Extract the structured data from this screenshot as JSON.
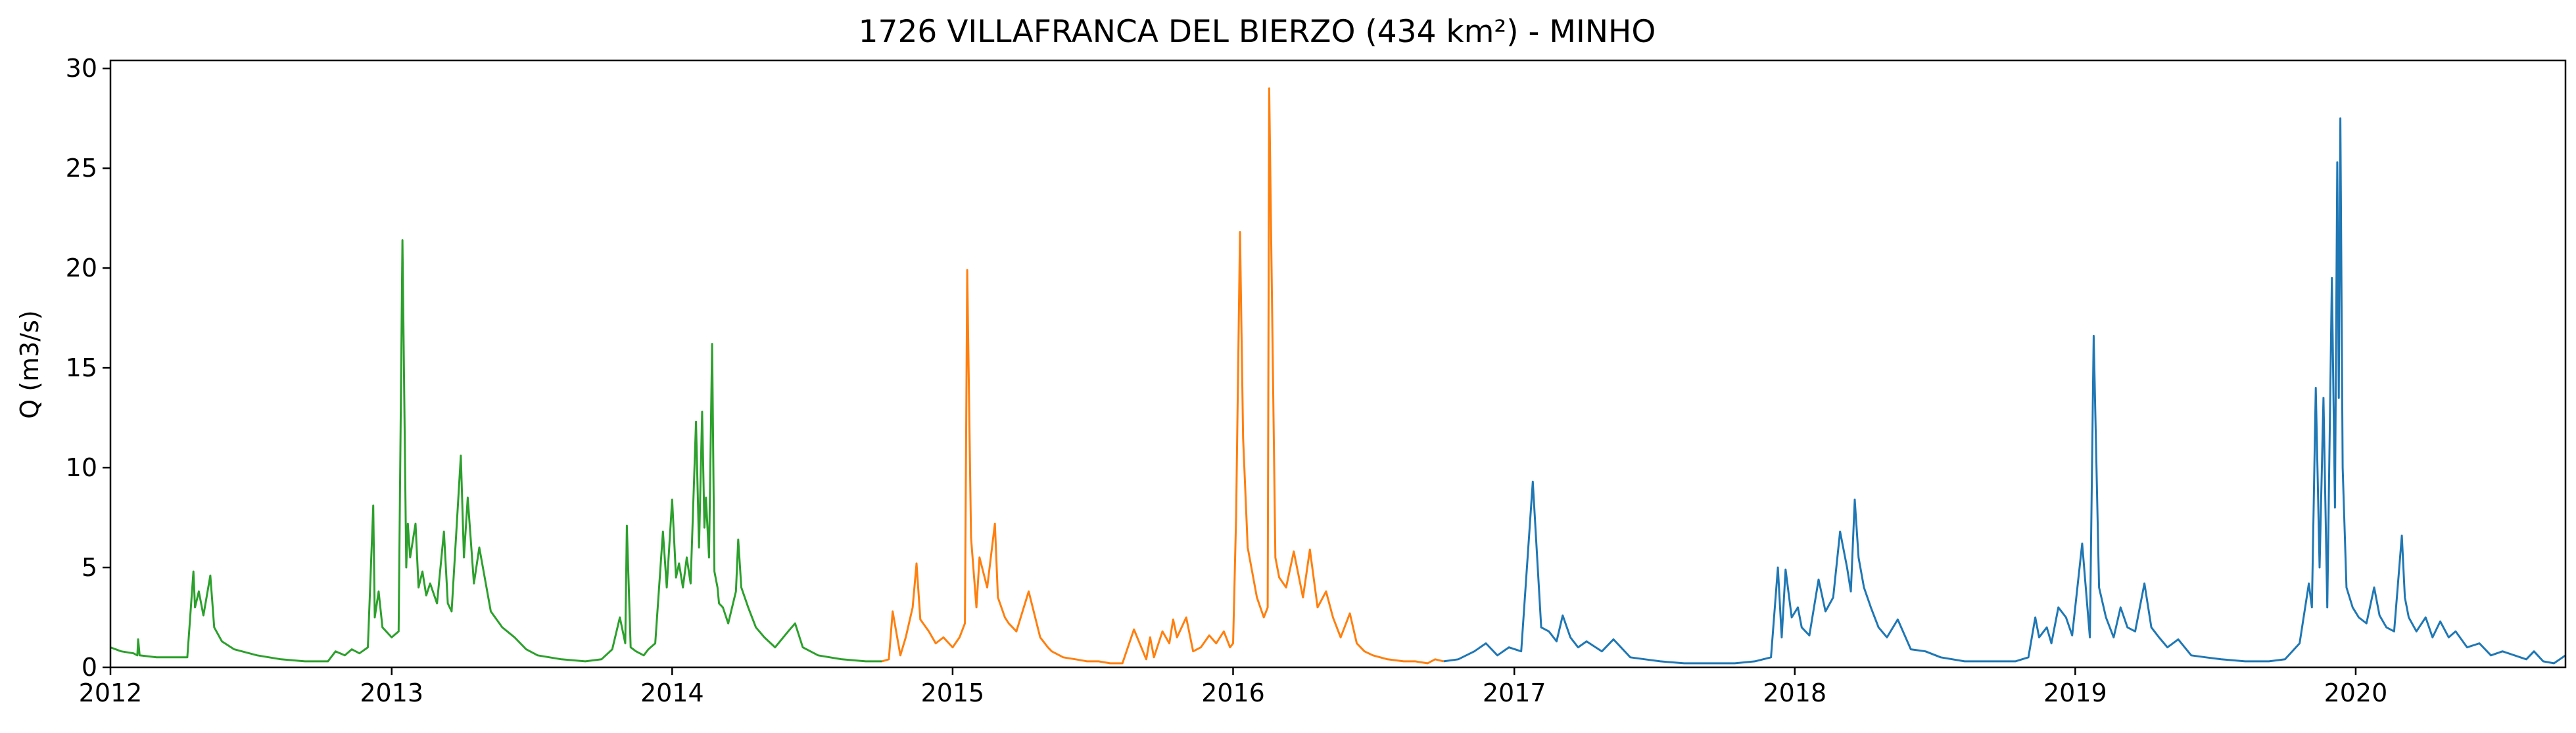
{
  "chart_data": {
    "type": "line",
    "title": "1726 VILLAFRANCA DEL BIERZO (434 km²) - MINHO",
    "xlabel": "",
    "ylabel": "Q (m3/s)",
    "xlim": [
      "2012-01-01",
      "2020-09-30"
    ],
    "ylim": [
      0,
      30.4
    ],
    "x_ticks": [
      "2012",
      "2013",
      "2014",
      "2015",
      "2016",
      "2017",
      "2018",
      "2019",
      "2020"
    ],
    "y_ticks": [
      0,
      5,
      10,
      15,
      20,
      25,
      30
    ],
    "grid": false,
    "legend": "none",
    "series": [
      {
        "color": "#2ca02c",
        "x": [
          "2012-01-01",
          "2012-01-15",
          "2012-01-31",
          "2012-02-05",
          "2012-02-06",
          "2012-02-08",
          "2012-03-01",
          "2012-04-10",
          "2012-04-18",
          "2012-04-20",
          "2012-04-25",
          "2012-05-01",
          "2012-05-10",
          "2012-05-15",
          "2012-05-25",
          "2012-06-10",
          "2012-07-10",
          "2012-08-10",
          "2012-09-10",
          "2012-10-10",
          "2012-10-20",
          "2012-11-01",
          "2012-11-10",
          "2012-11-20",
          "2012-12-01",
          "2012-12-08",
          "2012-12-10",
          "2012-12-15",
          "2012-12-20",
          "2013-01-01",
          "2013-01-10",
          "2013-01-15",
          "2013-01-20",
          "2013-01-22",
          "2013-01-25",
          "2013-02-01",
          "2013-02-05",
          "2013-02-10",
          "2013-02-15",
          "2013-02-20",
          "2013-03-01",
          "2013-03-10",
          "2013-03-15",
          "2013-03-20",
          "2013-04-01",
          "2013-04-05",
          "2013-04-10",
          "2013-04-18",
          "2013-04-25",
          "2013-05-10",
          "2013-05-25",
          "2013-06-10",
          "2013-06-25",
          "2013-07-10",
          "2013-08-10",
          "2013-09-10",
          "2013-10-01",
          "2013-10-15",
          "2013-10-25",
          "2013-11-01",
          "2013-11-03",
          "2013-11-08",
          "2013-11-15",
          "2013-11-25",
          "2013-12-01",
          "2013-12-10",
          "2013-12-20",
          "2013-12-25",
          "2014-01-01",
          "2014-01-06",
          "2014-01-10",
          "2014-01-15",
          "2014-01-20",
          "2014-01-25",
          "2014-02-01",
          "2014-02-05",
          "2014-02-09",
          "2014-02-12",
          "2014-02-14",
          "2014-02-18",
          "2014-02-22",
          "2014-02-25",
          "2014-03-01",
          "2014-03-03",
          "2014-03-08",
          "2014-03-15",
          "2014-03-25",
          "2014-03-28",
          "2014-04-01",
          "2014-04-10",
          "2014-04-20",
          "2014-05-01",
          "2014-05-15",
          "2014-06-01",
          "2014-06-10",
          "2014-06-20",
          "2014-07-10",
          "2014-08-10",
          "2014-09-10",
          "2014-10-01"
        ],
        "y": [
          1.0,
          0.8,
          0.7,
          0.6,
          1.4,
          0.6,
          0.5,
          0.5,
          4.8,
          3.0,
          3.8,
          2.6,
          4.6,
          2.0,
          1.3,
          0.9,
          0.6,
          0.4,
          0.3,
          0.3,
          0.8,
          0.6,
          0.9,
          0.7,
          1.0,
          8.1,
          2.5,
          3.8,
          2.0,
          1.5,
          1.8,
          21.4,
          5.0,
          7.2,
          5.5,
          7.2,
          4.0,
          4.8,
          3.6,
          4.2,
          3.2,
          6.8,
          3.2,
          2.8,
          10.6,
          5.5,
          8.5,
          4.2,
          6.0,
          2.8,
          2.0,
          1.5,
          0.9,
          0.6,
          0.4,
          0.3,
          0.4,
          0.9,
          2.5,
          1.2,
          7.1,
          1.0,
          0.8,
          0.6,
          0.9,
          1.2,
          6.8,
          4.0,
          8.4,
          4.5,
          5.2,
          4.0,
          5.5,
          4.2,
          12.3,
          6.0,
          12.8,
          7.0,
          8.5,
          5.5,
          16.2,
          4.8,
          4.0,
          3.2,
          3.0,
          2.2,
          3.8,
          6.4,
          4.0,
          3.0,
          2.0,
          1.5,
          1.0,
          1.8,
          2.2,
          1.0,
          0.6,
          0.4,
          0.3,
          0.3
        ]
      },
      {
        "color": "#ff7f0e",
        "x": [
          "2014-10-01",
          "2014-10-10",
          "2014-10-15",
          "2014-10-25",
          "2014-11-01",
          "2014-11-10",
          "2014-11-15",
          "2014-11-20",
          "2014-12-01",
          "2014-12-10",
          "2014-12-20",
          "2015-01-01",
          "2015-01-10",
          "2015-01-17",
          "2015-01-20",
          "2015-01-25",
          "2015-02-01",
          "2015-02-05",
          "2015-02-15",
          "2015-02-25",
          "2015-03-01",
          "2015-03-10",
          "2015-03-15",
          "2015-03-25",
          "2015-04-10",
          "2015-04-25",
          "2015-05-05",
          "2015-05-10",
          "2015-05-25",
          "2015-06-10",
          "2015-06-25",
          "2015-07-10",
          "2015-07-25",
          "2015-08-10",
          "2015-08-25",
          "2015-09-10",
          "2015-09-15",
          "2015-09-20",
          "2015-10-01",
          "2015-10-10",
          "2015-10-15",
          "2015-10-20",
          "2015-11-01",
          "2015-11-10",
          "2015-11-20",
          "2015-12-01",
          "2015-12-10",
          "2015-12-20",
          "2015-12-28",
          "2016-01-01",
          "2016-01-05",
          "2016-01-10",
          "2016-01-14",
          "2016-01-20",
          "2016-02-01",
          "2016-02-10",
          "2016-02-15",
          "2016-02-17",
          "2016-02-25",
          "2016-03-01",
          "2016-03-10",
          "2016-03-20",
          "2016-04-01",
          "2016-04-10",
          "2016-04-20",
          "2016-05-01",
          "2016-05-10",
          "2016-05-20",
          "2016-06-01",
          "2016-06-10",
          "2016-06-20",
          "2016-07-01",
          "2016-07-20",
          "2016-08-10",
          "2016-08-25",
          "2016-09-10",
          "2016-09-20",
          "2016-10-01"
        ],
        "y": [
          0.3,
          0.4,
          2.8,
          0.6,
          1.5,
          3.0,
          5.2,
          2.4,
          1.8,
          1.2,
          1.5,
          1.0,
          1.5,
          2.2,
          19.9,
          6.5,
          3.0,
          5.5,
          4.0,
          7.2,
          3.5,
          2.5,
          2.2,
          1.8,
          3.8,
          1.5,
          1.0,
          0.8,
          0.5,
          0.4,
          0.3,
          0.3,
          0.2,
          0.2,
          1.9,
          0.4,
          1.5,
          0.5,
          1.8,
          1.2,
          2.4,
          1.5,
          2.5,
          0.8,
          1.0,
          1.6,
          1.2,
          1.8,
          1.0,
          1.2,
          7.6,
          21.8,
          11.5,
          6.0,
          3.5,
          2.5,
          3.0,
          29.0,
          5.5,
          4.5,
          4.0,
          5.8,
          3.5,
          5.9,
          3.0,
          3.8,
          2.5,
          1.5,
          2.7,
          1.2,
          0.8,
          0.6,
          0.4,
          0.3,
          0.3,
          0.2,
          0.4,
          0.3
        ]
      },
      {
        "color": "#1f77b4",
        "x": [
          "2016-10-01",
          "2016-10-20",
          "2016-11-10",
          "2016-11-25",
          "2016-12-10",
          "2016-12-25",
          "2017-01-10",
          "2017-01-25",
          "2017-02-05",
          "2017-02-15",
          "2017-02-25",
          "2017-03-05",
          "2017-03-15",
          "2017-03-25",
          "2017-04-05",
          "2017-04-25",
          "2017-05-10",
          "2017-06-01",
          "2017-06-20",
          "2017-07-10",
          "2017-08-10",
          "2017-09-10",
          "2017-10-15",
          "2017-11-10",
          "2017-12-01",
          "2017-12-10",
          "2017-12-15",
          "2017-12-20",
          "2017-12-28",
          "2018-01-05",
          "2018-01-10",
          "2018-01-20",
          "2018-02-01",
          "2018-02-10",
          "2018-02-20",
          "2018-03-01",
          "2018-03-10",
          "2018-03-15",
          "2018-03-20",
          "2018-03-25",
          "2018-04-01",
          "2018-04-10",
          "2018-04-20",
          "2018-05-01",
          "2018-05-15",
          "2018-06-01",
          "2018-06-20",
          "2018-07-10",
          "2018-08-10",
          "2018-09-10",
          "2018-10-15",
          "2018-11-01",
          "2018-11-10",
          "2018-11-15",
          "2018-11-25",
          "2018-12-01",
          "2018-12-10",
          "2018-12-20",
          "2018-12-28",
          "2019-01-10",
          "2019-01-20",
          "2019-01-25",
          "2019-02-01",
          "2019-02-10",
          "2019-02-20",
          "2019-03-01",
          "2019-03-10",
          "2019-03-20",
          "2019-04-01",
          "2019-04-10",
          "2019-04-20",
          "2019-05-01",
          "2019-05-15",
          "2019-06-01",
          "2019-06-20",
          "2019-07-10",
          "2019-08-10",
          "2019-09-10",
          "2019-10-01",
          "2019-10-20",
          "2019-11-01",
          "2019-11-05",
          "2019-11-10",
          "2019-11-15",
          "2019-11-20",
          "2019-11-25",
          "2019-12-01",
          "2019-12-05",
          "2019-12-08",
          "2019-12-10",
          "2019-12-12",
          "2019-12-15",
          "2019-12-20",
          "2019-12-28",
          "2020-01-05",
          "2020-01-15",
          "2020-01-25",
          "2020-02-01",
          "2020-02-10",
          "2020-02-20",
          "2020-03-01",
          "2020-03-05",
          "2020-03-10",
          "2020-03-20",
          "2020-04-01",
          "2020-04-10",
          "2020-04-20",
          "2020-05-01",
          "2020-05-10",
          "2020-05-25",
          "2020-06-10",
          "2020-06-25",
          "2020-07-10",
          "2020-08-10",
          "2020-08-20",
          "2020-09-01",
          "2020-09-15",
          "2020-09-30"
        ],
        "y": [
          0.3,
          0.4,
          0.8,
          1.2,
          0.6,
          1.0,
          0.8,
          9.3,
          2.0,
          1.8,
          1.3,
          2.6,
          1.5,
          1.0,
          1.3,
          0.8,
          1.4,
          0.5,
          0.4,
          0.3,
          0.2,
          0.2,
          0.2,
          0.3,
          0.5,
          5.0,
          1.5,
          4.9,
          2.5,
          3.0,
          2.0,
          1.6,
          4.4,
          2.8,
          3.5,
          6.8,
          5.0,
          3.8,
          8.4,
          5.5,
          4.0,
          3.0,
          2.0,
          1.5,
          2.4,
          0.9,
          0.8,
          0.5,
          0.3,
          0.3,
          0.3,
          0.5,
          2.5,
          1.5,
          2.0,
          1.2,
          3.0,
          2.5,
          1.6,
          6.2,
          1.5,
          16.6,
          4.0,
          2.5,
          1.5,
          3.0,
          2.0,
          1.8,
          4.2,
          2.0,
          1.5,
          1.0,
          1.4,
          0.6,
          0.5,
          0.4,
          0.3,
          0.3,
          0.4,
          1.2,
          4.2,
          3.0,
          14.0,
          5.0,
          13.5,
          3.0,
          19.5,
          8.0,
          25.3,
          13.5,
          27.5,
          10.0,
          4.0,
          3.0,
          2.5,
          2.2,
          4.0,
          2.6,
          2.0,
          1.8,
          6.6,
          3.5,
          2.5,
          1.8,
          2.5,
          1.5,
          2.3,
          1.5,
          1.8,
          1.0,
          1.2,
          0.6,
          0.8,
          0.4,
          0.8,
          0.3,
          0.2,
          0.6
        ]
      }
    ]
  }
}
